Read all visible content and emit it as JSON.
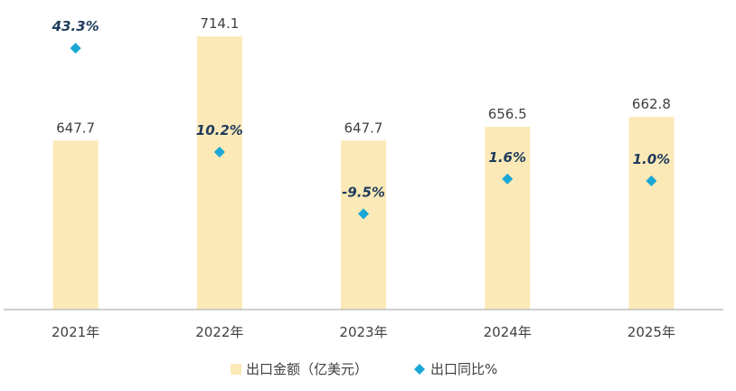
{
  "chart_data": {
    "type": "bar",
    "categories": [
      "2021年",
      "2022年",
      "2023年",
      "2024年",
      "2025年"
    ],
    "series": [
      {
        "name": "出口金额（亿美元）",
        "kind": "bar",
        "color": "#fbe9b7",
        "values": [
          647.7,
          714.1,
          647.7,
          656.5,
          662.8
        ],
        "labels": [
          "647.7",
          "714.1",
          "647.7",
          "656.5",
          "662.8"
        ],
        "ylim": [
          540,
          720
        ]
      },
      {
        "name": "出口同比%",
        "kind": "scatter",
        "marker": "diamond",
        "color": "#1aa7d6",
        "values": [
          43.3,
          10.2,
          -9.5,
          1.6,
          1.0
        ],
        "labels": [
          "43.3%",
          "10.2%",
          "-9.5%",
          "1.6%",
          "1.0%"
        ],
        "ylim": [
          -40,
          50
        ]
      }
    ],
    "title": "",
    "xlabel": "",
    "ylabel": "",
    "grid": false,
    "legend": "bottom-center"
  }
}
